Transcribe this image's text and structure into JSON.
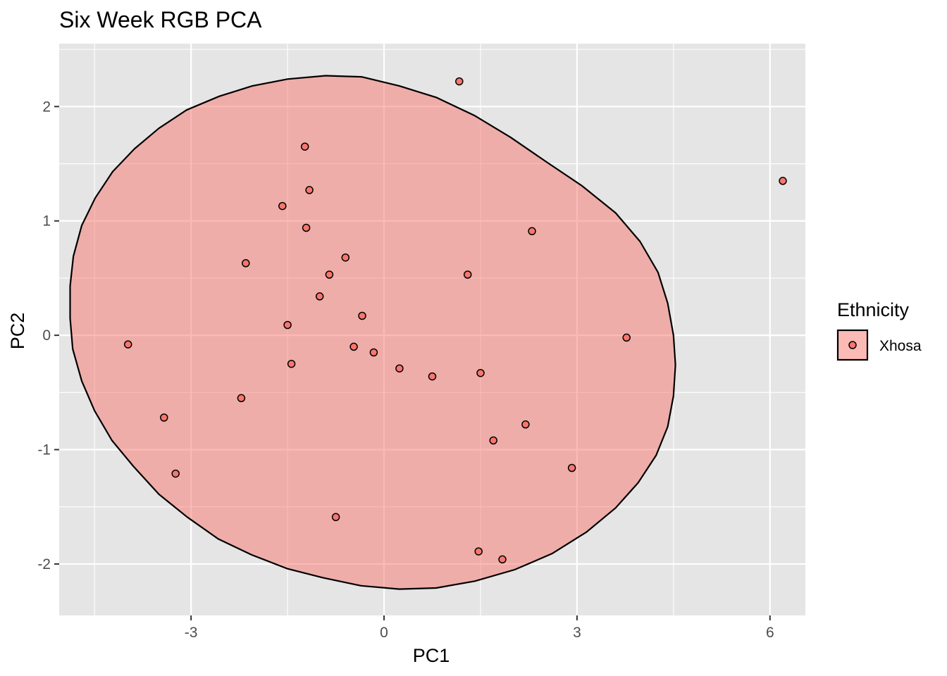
{
  "chart_data": {
    "type": "scatter",
    "title": "Six Week RGB PCA",
    "xlabel": "PC1",
    "ylabel": "PC2",
    "xlim": [
      -5.05,
      6.55
    ],
    "ylim": [
      -2.45,
      2.55
    ],
    "x_ticks": [
      -3,
      0,
      3,
      6
    ],
    "y_ticks": [
      -2,
      -1,
      0,
      1,
      2
    ],
    "x_tick_labels": [
      "-3",
      "0",
      "3",
      "6"
    ],
    "y_tick_labels": [
      "-2",
      "-1",
      "0",
      "1",
      "2"
    ],
    "grid": true,
    "legend": {
      "title": "Ethnicity",
      "position": "right"
    },
    "colors": {
      "panel": "#e5e5e5",
      "grid": "#ffffff",
      "point_fill": "#f8766d",
      "point_stroke": "#000000",
      "ellipse_fill": "#f8766d",
      "ellipse_opacity": 0.5
    },
    "series": [
      {
        "name": "Xhosa",
        "points": [
          {
            "x": 1.17,
            "y": 2.22
          },
          {
            "x": 6.2,
            "y": 1.35
          },
          {
            "x": -1.23,
            "y": 1.65
          },
          {
            "x": -1.16,
            "y": 1.27
          },
          {
            "x": -1.58,
            "y": 1.13
          },
          {
            "x": -1.21,
            "y": 0.94
          },
          {
            "x": 2.3,
            "y": 0.91
          },
          {
            "x": -0.6,
            "y": 0.68
          },
          {
            "x": -2.15,
            "y": 0.63
          },
          {
            "x": -0.85,
            "y": 0.53
          },
          {
            "x": 1.3,
            "y": 0.53
          },
          {
            "x": -1.0,
            "y": 0.34
          },
          {
            "x": -0.34,
            "y": 0.17
          },
          {
            "x": -1.5,
            "y": 0.09
          },
          {
            "x": 3.77,
            "y": -0.02
          },
          {
            "x": -3.98,
            "y": -0.08
          },
          {
            "x": -0.47,
            "y": -0.1
          },
          {
            "x": -0.16,
            "y": -0.15
          },
          {
            "x": -1.44,
            "y": -0.25
          },
          {
            "x": 0.24,
            "y": -0.29
          },
          {
            "x": 1.5,
            "y": -0.33
          },
          {
            "x": 0.75,
            "y": -0.36
          },
          {
            "x": -2.22,
            "y": -0.55
          },
          {
            "x": -3.42,
            "y": -0.72
          },
          {
            "x": 2.2,
            "y": -0.78
          },
          {
            "x": 1.7,
            "y": -0.92
          },
          {
            "x": 2.92,
            "y": -1.16
          },
          {
            "x": -3.24,
            "y": -1.21
          },
          {
            "x": -0.75,
            "y": -1.59
          },
          {
            "x": 1.47,
            "y": -1.89
          },
          {
            "x": 1.84,
            "y": -1.96
          }
        ]
      }
    ],
    "ellipse": {
      "points": [
        {
          "x": -0.91,
          "y": 2.27
        },
        {
          "x": -0.35,
          "y": 2.26
        },
        {
          "x": 0.24,
          "y": 2.18
        },
        {
          "x": 0.81,
          "y": 2.08
        },
        {
          "x": 1.41,
          "y": 1.92
        },
        {
          "x": 1.97,
          "y": 1.73
        },
        {
          "x": 2.54,
          "y": 1.51
        },
        {
          "x": 3.07,
          "y": 1.31
        },
        {
          "x": 3.6,
          "y": 1.07
        },
        {
          "x": 3.98,
          "y": 0.82
        },
        {
          "x": 4.26,
          "y": 0.55
        },
        {
          "x": 4.41,
          "y": 0.28
        },
        {
          "x": 4.5,
          "y": 0.0
        },
        {
          "x": 4.53,
          "y": -0.26
        },
        {
          "x": 4.5,
          "y": -0.53
        },
        {
          "x": 4.41,
          "y": -0.8
        },
        {
          "x": 4.23,
          "y": -1.05
        },
        {
          "x": 3.95,
          "y": -1.29
        },
        {
          "x": 3.6,
          "y": -1.51
        },
        {
          "x": 3.15,
          "y": -1.72
        },
        {
          "x": 2.61,
          "y": -1.91
        },
        {
          "x": 2.03,
          "y": -2.05
        },
        {
          "x": 1.41,
          "y": -2.15
        },
        {
          "x": 0.81,
          "y": -2.21
        },
        {
          "x": 0.24,
          "y": -2.22
        },
        {
          "x": -0.36,
          "y": -2.19
        },
        {
          "x": -0.95,
          "y": -2.12
        },
        {
          "x": -1.51,
          "y": -2.04
        },
        {
          "x": -2.06,
          "y": -1.92
        },
        {
          "x": -2.58,
          "y": -1.78
        },
        {
          "x": -3.06,
          "y": -1.59
        },
        {
          "x": -3.5,
          "y": -1.39
        },
        {
          "x": -3.89,
          "y": -1.15
        },
        {
          "x": -4.23,
          "y": -0.92
        },
        {
          "x": -4.5,
          "y": -0.66
        },
        {
          "x": -4.7,
          "y": -0.4
        },
        {
          "x": -4.84,
          "y": -0.12
        },
        {
          "x": -4.88,
          "y": 0.15
        },
        {
          "x": -4.88,
          "y": 0.43
        },
        {
          "x": -4.83,
          "y": 0.69
        },
        {
          "x": -4.7,
          "y": 0.96
        },
        {
          "x": -4.49,
          "y": 1.2
        },
        {
          "x": -4.22,
          "y": 1.43
        },
        {
          "x": -3.88,
          "y": 1.63
        },
        {
          "x": -3.5,
          "y": 1.81
        },
        {
          "x": -3.07,
          "y": 1.97
        },
        {
          "x": -2.56,
          "y": 2.09
        },
        {
          "x": -2.05,
          "y": 2.18
        },
        {
          "x": -1.5,
          "y": 2.24
        }
      ]
    }
  }
}
